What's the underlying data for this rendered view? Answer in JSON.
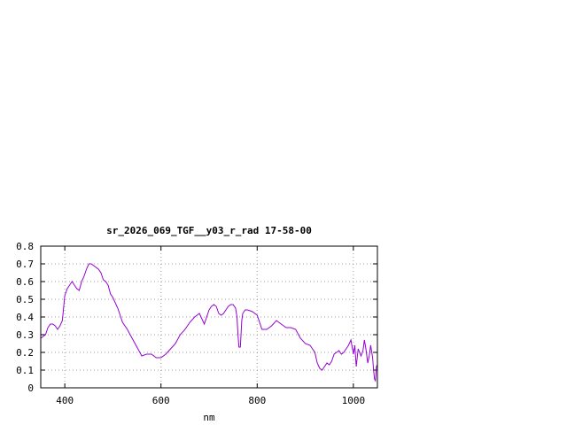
{
  "chart_data": {
    "type": "line",
    "title": "sr_2026_069_TGF__y03_r_rad 17-58-00",
    "xlabel": "nm",
    "ylabel": "",
    "xlim": [
      350,
      1050
    ],
    "ylim": [
      0,
      0.8
    ],
    "xticks": [
      {
        "value": 400,
        "label": "400"
      },
      {
        "value": 600,
        "label": "600"
      },
      {
        "value": 800,
        "label": "800"
      },
      {
        "value": 1000,
        "label": "1000"
      }
    ],
    "yticks": [
      {
        "value": 0,
        "label": "0"
      },
      {
        "value": 0.1,
        "label": "0.1"
      },
      {
        "value": 0.2,
        "label": "0.2"
      },
      {
        "value": 0.3,
        "label": "0.3"
      },
      {
        "value": 0.4,
        "label": "0.4"
      },
      {
        "value": 0.5,
        "label": "0.5"
      },
      {
        "value": 0.6,
        "label": "0.6"
      },
      {
        "value": 0.7,
        "label": "0.7"
      },
      {
        "value": 0.8,
        "label": "0.8"
      }
    ],
    "grid": true,
    "legend": "none",
    "series_color": "#9400d3",
    "series": [
      {
        "x": [
          350,
          355,
          360,
          365,
          370,
          375,
          380,
          385,
          390,
          395,
          400,
          405,
          410,
          415,
          420,
          425,
          430,
          435,
          440,
          445,
          450,
          455,
          460,
          465,
          470,
          475,
          480,
          485,
          490,
          495,
          500,
          510,
          520,
          530,
          540,
          550,
          560,
          570,
          580,
          590,
          600,
          610,
          620,
          630,
          640,
          650,
          660,
          670,
          680,
          690,
          700,
          705,
          710,
          715,
          720,
          725,
          730,
          735,
          740,
          745,
          750,
          755,
          758,
          760,
          762,
          765,
          768,
          770,
          775,
          780,
          790,
          800,
          810,
          820,
          830,
          840,
          850,
          860,
          870,
          880,
          890,
          900,
          910,
          920,
          925,
          930,
          935,
          940,
          945,
          950,
          955,
          960,
          965,
          970,
          975,
          980,
          985,
          990,
          995,
          1000,
          1003,
          1006,
          1010,
          1013,
          1016,
          1020,
          1023,
          1026,
          1030,
          1033,
          1036,
          1040,
          1042,
          1044,
          1046,
          1048,
          1050
        ],
        "y": [
          0.28,
          0.29,
          0.3,
          0.34,
          0.36,
          0.36,
          0.35,
          0.33,
          0.35,
          0.38,
          0.52,
          0.56,
          0.58,
          0.6,
          0.58,
          0.56,
          0.55,
          0.6,
          0.63,
          0.67,
          0.7,
          0.7,
          0.69,
          0.68,
          0.67,
          0.65,
          0.61,
          0.6,
          0.58,
          0.53,
          0.51,
          0.45,
          0.37,
          0.33,
          0.28,
          0.23,
          0.18,
          0.19,
          0.19,
          0.17,
          0.17,
          0.19,
          0.22,
          0.25,
          0.3,
          0.33,
          0.37,
          0.4,
          0.42,
          0.36,
          0.44,
          0.46,
          0.47,
          0.46,
          0.42,
          0.41,
          0.42,
          0.44,
          0.46,
          0.47,
          0.47,
          0.45,
          0.4,
          0.3,
          0.23,
          0.23,
          0.38,
          0.42,
          0.44,
          0.44,
          0.43,
          0.41,
          0.33,
          0.33,
          0.35,
          0.38,
          0.36,
          0.34,
          0.34,
          0.33,
          0.28,
          0.25,
          0.24,
          0.2,
          0.14,
          0.11,
          0.1,
          0.12,
          0.14,
          0.13,
          0.15,
          0.19,
          0.2,
          0.21,
          0.19,
          0.2,
          0.22,
          0.24,
          0.27,
          0.19,
          0.24,
          0.12,
          0.22,
          0.2,
          0.18,
          0.21,
          0.27,
          0.22,
          0.14,
          0.18,
          0.24,
          0.17,
          0.1,
          0.05,
          0.04,
          0.12,
          0.13
        ]
      }
    ]
  }
}
